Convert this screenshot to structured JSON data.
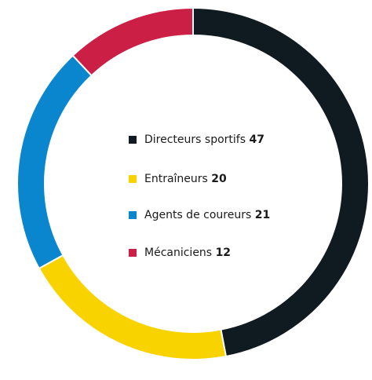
{
  "chart_data": {
    "type": "donut",
    "categories": [
      "Directeurs sportifs",
      "Entraîneurs",
      "Agents de coureurs",
      "Mécaniciens"
    ],
    "values": [
      47,
      20,
      21,
      12
    ],
    "colors": [
      "#101a21",
      "#f8d300",
      "#0a86cf",
      "#cc1f45"
    ]
  }
}
